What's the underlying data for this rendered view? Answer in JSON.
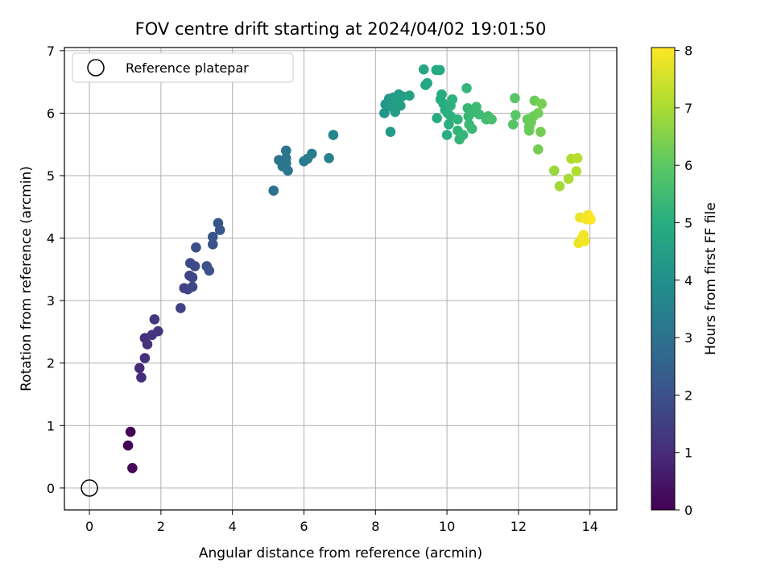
{
  "chart_data": {
    "type": "scatter",
    "title": "FOV centre drift starting at 2024/04/02 19:01:50",
    "xlabel": "Angular distance from reference (arcmin)",
    "ylabel": "Rotation from reference (arcmin)",
    "xlim": [
      -0.7,
      14.75
    ],
    "ylim": [
      -0.35,
      7.05
    ],
    "xticks": [
      0,
      2,
      4,
      6,
      8,
      10,
      12,
      14
    ],
    "yticks": [
      0,
      1,
      2,
      3,
      4,
      5,
      6,
      7
    ],
    "grid": true,
    "legend": {
      "position": "top-left",
      "entries": [
        "Reference platepar"
      ]
    },
    "colorbar": {
      "label": "Hours from first FF file",
      "colormap": "viridis",
      "range": [
        0,
        8.05
      ],
      "ticks": [
        0,
        1,
        2,
        3,
        4,
        5,
        6,
        7,
        8
      ]
    },
    "reference_point": {
      "name": "Reference platepar",
      "x": 0,
      "y": 0
    },
    "series": [
      {
        "points": [
          {
            "x": 1.15,
            "y": 0.9,
            "c": 0.05
          },
          {
            "x": 1.08,
            "y": 0.68,
            "c": 0.1
          },
          {
            "x": 1.2,
            "y": 0.32,
            "c": 0.15
          },
          {
            "x": 1.4,
            "y": 1.92,
            "c": 0.95
          },
          {
            "x": 1.45,
            "y": 1.77,
            "c": 1.0
          },
          {
            "x": 1.55,
            "y": 2.08,
            "c": 1.05
          },
          {
            "x": 1.55,
            "y": 2.4,
            "c": 1.1
          },
          {
            "x": 1.62,
            "y": 2.3,
            "c": 1.15
          },
          {
            "x": 1.75,
            "y": 2.45,
            "c": 1.2
          },
          {
            "x": 1.82,
            "y": 2.7,
            "c": 1.25
          },
          {
            "x": 1.92,
            "y": 2.51,
            "c": 1.3
          },
          {
            "x": 2.55,
            "y": 2.88,
            "c": 1.5
          },
          {
            "x": 2.65,
            "y": 3.2,
            "c": 1.55
          },
          {
            "x": 2.75,
            "y": 3.18,
            "c": 1.6
          },
          {
            "x": 2.8,
            "y": 3.4,
            "c": 1.65
          },
          {
            "x": 2.88,
            "y": 3.22,
            "c": 1.7
          },
          {
            "x": 2.88,
            "y": 3.37,
            "c": 1.75
          },
          {
            "x": 2.82,
            "y": 3.6,
            "c": 1.8
          },
          {
            "x": 2.95,
            "y": 3.55,
            "c": 1.85
          },
          {
            "x": 2.98,
            "y": 3.85,
            "c": 1.9
          },
          {
            "x": 3.28,
            "y": 3.55,
            "c": 1.95
          },
          {
            "x": 3.35,
            "y": 3.48,
            "c": 2.0
          },
          {
            "x": 3.45,
            "y": 3.9,
            "c": 2.05
          },
          {
            "x": 3.45,
            "y": 4.02,
            "c": 2.1
          },
          {
            "x": 3.6,
            "y": 4.24,
            "c": 2.15
          },
          {
            "x": 3.65,
            "y": 4.13,
            "c": 2.2
          },
          {
            "x": 5.15,
            "y": 4.76,
            "c": 3.0
          },
          {
            "x": 5.3,
            "y": 5.25,
            "c": 3.05
          },
          {
            "x": 5.4,
            "y": 5.15,
            "c": 3.1
          },
          {
            "x": 5.5,
            "y": 5.4,
            "c": 3.12
          },
          {
            "x": 5.5,
            "y": 5.28,
            "c": 3.15
          },
          {
            "x": 5.55,
            "y": 5.08,
            "c": 3.2
          },
          {
            "x": 5.5,
            "y": 5.2,
            "c": 3.18
          },
          {
            "x": 6.0,
            "y": 5.23,
            "c": 3.3
          },
          {
            "x": 6.1,
            "y": 5.27,
            "c": 3.35
          },
          {
            "x": 6.22,
            "y": 5.35,
            "c": 3.4
          },
          {
            "x": 6.7,
            "y": 5.28,
            "c": 3.55
          },
          {
            "x": 6.82,
            "y": 5.65,
            "c": 3.6
          },
          {
            "x": 8.25,
            "y": 6.0,
            "c": 4.2
          },
          {
            "x": 8.28,
            "y": 6.14,
            "c": 4.25
          },
          {
            "x": 8.38,
            "y": 6.23,
            "c": 4.3
          },
          {
            "x": 8.42,
            "y": 5.7,
            "c": 4.35
          },
          {
            "x": 8.45,
            "y": 6.1,
            "c": 4.38
          },
          {
            "x": 8.5,
            "y": 6.25,
            "c": 4.4
          },
          {
            "x": 8.55,
            "y": 6.02,
            "c": 4.42
          },
          {
            "x": 8.6,
            "y": 6.18,
            "c": 4.45
          },
          {
            "x": 8.65,
            "y": 6.3,
            "c": 4.48
          },
          {
            "x": 8.7,
            "y": 6.12,
            "c": 4.5
          },
          {
            "x": 8.75,
            "y": 6.27,
            "c": 4.52
          },
          {
            "x": 8.95,
            "y": 6.28,
            "c": 4.6
          },
          {
            "x": 9.35,
            "y": 6.7,
            "c": 4.75
          },
          {
            "x": 9.4,
            "y": 6.45,
            "c": 4.78
          },
          {
            "x": 9.45,
            "y": 6.48,
            "c": 4.8
          },
          {
            "x": 9.7,
            "y": 6.69,
            "c": 4.85
          },
          {
            "x": 9.8,
            "y": 6.69,
            "c": 4.88
          },
          {
            "x": 9.72,
            "y": 5.92,
            "c": 4.9
          },
          {
            "x": 9.82,
            "y": 6.22,
            "c": 4.92
          },
          {
            "x": 9.85,
            "y": 6.3,
            "c": 4.95
          },
          {
            "x": 9.9,
            "y": 6.15,
            "c": 4.98
          },
          {
            "x": 9.95,
            "y": 6.05,
            "c": 5.0
          },
          {
            "x": 10.0,
            "y": 5.65,
            "c": 5.02
          },
          {
            "x": 10.02,
            "y": 6.0,
            "c": 5.05
          },
          {
            "x": 10.05,
            "y": 5.82,
            "c": 5.08
          },
          {
            "x": 10.1,
            "y": 6.12,
            "c": 5.1
          },
          {
            "x": 10.1,
            "y": 5.95,
            "c": 5.12
          },
          {
            "x": 10.15,
            "y": 6.22,
            "c": 5.15
          },
          {
            "x": 10.3,
            "y": 5.9,
            "c": 5.2
          },
          {
            "x": 10.3,
            "y": 5.72,
            "c": 5.22
          },
          {
            "x": 10.35,
            "y": 5.58,
            "c": 5.25
          },
          {
            "x": 10.45,
            "y": 5.65,
            "c": 5.28
          },
          {
            "x": 10.55,
            "y": 6.4,
            "c": 5.3
          },
          {
            "x": 10.58,
            "y": 6.08,
            "c": 5.32
          },
          {
            "x": 10.6,
            "y": 5.95,
            "c": 5.35
          },
          {
            "x": 10.62,
            "y": 5.82,
            "c": 5.38
          },
          {
            "x": 10.7,
            "y": 5.75,
            "c": 5.4
          },
          {
            "x": 10.75,
            "y": 6.02,
            "c": 5.42
          },
          {
            "x": 10.82,
            "y": 6.1,
            "c": 5.45
          },
          {
            "x": 10.9,
            "y": 5.98,
            "c": 5.48
          },
          {
            "x": 11.1,
            "y": 5.9,
            "c": 5.55
          },
          {
            "x": 11.15,
            "y": 5.95,
            "c": 5.58
          },
          {
            "x": 11.25,
            "y": 5.9,
            "c": 5.62
          },
          {
            "x": 11.85,
            "y": 5.82,
            "c": 5.9
          },
          {
            "x": 11.9,
            "y": 6.24,
            "c": 5.92
          },
          {
            "x": 11.92,
            "y": 5.97,
            "c": 5.95
          },
          {
            "x": 12.25,
            "y": 5.9,
            "c": 6.1
          },
          {
            "x": 12.3,
            "y": 5.78,
            "c": 6.12
          },
          {
            "x": 12.3,
            "y": 5.72,
            "c": 6.15
          },
          {
            "x": 12.35,
            "y": 5.85,
            "c": 6.18
          },
          {
            "x": 12.42,
            "y": 5.95,
            "c": 6.2
          },
          {
            "x": 12.45,
            "y": 6.2,
            "c": 6.22
          },
          {
            "x": 12.55,
            "y": 6.0,
            "c": 6.25
          },
          {
            "x": 12.55,
            "y": 5.42,
            "c": 6.3
          },
          {
            "x": 12.62,
            "y": 5.7,
            "c": 6.32
          },
          {
            "x": 12.65,
            "y": 6.15,
            "c": 6.35
          },
          {
            "x": 13.0,
            "y": 5.08,
            "c": 6.8
          },
          {
            "x": 13.15,
            "y": 4.83,
            "c": 6.9
          },
          {
            "x": 13.4,
            "y": 4.95,
            "c": 7.0
          },
          {
            "x": 13.48,
            "y": 5.27,
            "c": 7.05
          },
          {
            "x": 13.62,
            "y": 5.07,
            "c": 7.1
          },
          {
            "x": 13.65,
            "y": 5.28,
            "c": 7.15
          },
          {
            "x": 13.72,
            "y": 4.33,
            "c": 7.8
          },
          {
            "x": 13.68,
            "y": 3.92,
            "c": 7.85
          },
          {
            "x": 13.78,
            "y": 4.0,
            "c": 7.88
          },
          {
            "x": 13.82,
            "y": 4.05,
            "c": 7.9
          },
          {
            "x": 13.85,
            "y": 3.95,
            "c": 7.92
          },
          {
            "x": 13.9,
            "y": 4.3,
            "c": 7.95
          },
          {
            "x": 13.95,
            "y": 4.37,
            "c": 7.98
          },
          {
            "x": 14.02,
            "y": 4.3,
            "c": 8.02
          }
        ]
      }
    ]
  }
}
